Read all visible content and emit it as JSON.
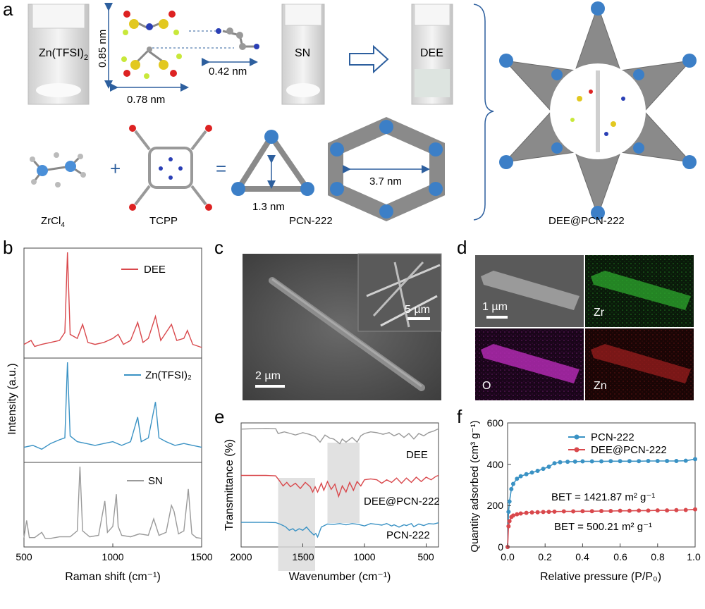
{
  "panels": {
    "a": {
      "letter": "a",
      "vial1": "Zn(TFSI)",
      "vial1_sub": "2",
      "dim_h": "0.85 nm",
      "dim_w": "0.78 nm",
      "dim_sn": "0.42 nm",
      "vial2": "SN",
      "vial3": "DEE",
      "zrcl": "ZrCl",
      "zrcl_sub": "4",
      "tcpp": "TCPP",
      "pcn": "PCN-222",
      "pore_small": "1.3 nm",
      "pore_large": "3.7 nm",
      "composite": "DEE@PCN-222",
      "plus": "+",
      "equals": "="
    },
    "b": {
      "letter": "b"
    },
    "c": {
      "letter": "c",
      "scale_inset": "5 µm",
      "scale_main": "2 µm"
    },
    "d": {
      "letter": "d",
      "scale": "1 µm",
      "el_zr": "Zr",
      "el_o": "O",
      "el_zn": "Zn"
    },
    "e": {
      "letter": "e"
    },
    "f": {
      "letter": "f",
      "bet1": "BET = 1421.87 m² g⁻¹",
      "bet2": "BET = 500.21 m² g⁻¹"
    }
  },
  "colors": {
    "red": "#d9484c",
    "blue": "#3a92c4",
    "gray": "#9a9a9a",
    "arrow": "#2d5f9e"
  },
  "chart_data": [
    {
      "type": "line",
      "id": "raman",
      "xlabel": "Raman shift (cm⁻¹)",
      "ylabel": "Intensity (a.u.)",
      "xlim": [
        500,
        1500
      ],
      "xticks": [
        "500",
        "1000",
        "1500"
      ],
      "series": [
        {
          "name": "DEE",
          "color": "#d9484c",
          "x": [
            500,
            540,
            560,
            600,
            650,
            700,
            730,
            745,
            760,
            800,
            830,
            860,
            900,
            950,
            1000,
            1030,
            1060,
            1100,
            1140,
            1170,
            1200,
            1240,
            1270,
            1300,
            1330,
            1360,
            1400,
            1420,
            1450,
            1500
          ],
          "y": [
            0.08,
            0.12,
            0.06,
            0.08,
            0.1,
            0.12,
            0.2,
            1.0,
            0.18,
            0.14,
            0.28,
            0.1,
            0.08,
            0.1,
            0.14,
            0.18,
            0.08,
            0.12,
            0.3,
            0.1,
            0.14,
            0.36,
            0.12,
            0.2,
            0.28,
            0.12,
            0.14,
            0.22,
            0.08,
            0.05
          ]
        },
        {
          "name": "Zn(TFSI)₂",
          "color": "#3a92c4",
          "x": [
            500,
            550,
            600,
            650,
            700,
            730,
            745,
            760,
            800,
            850,
            900,
            950,
            1000,
            1050,
            1100,
            1140,
            1160,
            1200,
            1240,
            1260,
            1300,
            1350,
            1400,
            1450,
            1500
          ],
          "y": [
            0.1,
            0.12,
            0.08,
            0.14,
            0.18,
            0.2,
            1.0,
            0.22,
            0.16,
            0.14,
            0.12,
            0.14,
            0.16,
            0.12,
            0.16,
            0.42,
            0.16,
            0.2,
            0.58,
            0.2,
            0.16,
            0.12,
            0.14,
            0.12,
            0.1
          ]
        },
        {
          "name": "SN",
          "color": "#9a9a9a",
          "x": [
            500,
            515,
            530,
            560,
            600,
            620,
            650,
            700,
            760,
            800,
            815,
            830,
            870,
            920,
            955,
            970,
            1000,
            1020,
            1030,
            1050,
            1100,
            1150,
            1200,
            1230,
            1260,
            1300,
            1330,
            1345,
            1370,
            1400,
            1425,
            1445,
            1470,
            1500
          ],
          "y": [
            0.05,
            0.28,
            0.05,
            0.05,
            0.12,
            0.04,
            0.04,
            0.06,
            0.06,
            0.14,
            1.0,
            0.14,
            0.06,
            0.08,
            0.54,
            0.12,
            0.2,
            0.63,
            0.2,
            0.08,
            0.06,
            0.1,
            0.08,
            0.3,
            0.08,
            0.12,
            0.48,
            0.4,
            0.1,
            0.14,
            0.7,
            0.1,
            0.05,
            0.04
          ]
        }
      ]
    },
    {
      "type": "line",
      "id": "ftir",
      "xlabel": "Wavenumber (cm⁻¹)",
      "ylabel": "Transmittance (%)",
      "xlim": [
        2000,
        400
      ],
      "xticks": [
        "2000",
        "1500",
        "1000",
        "500"
      ],
      "highlight_ranges": [
        [
          1700,
          1400
        ],
        [
          1300,
          1040
        ]
      ],
      "series": [
        {
          "name": "DEE",
          "color": "#9a9a9a",
          "x": [
            2000,
            1900,
            1800,
            1720,
            1700,
            1650,
            1600,
            1560,
            1500,
            1450,
            1400,
            1360,
            1320,
            1280,
            1250,
            1200,
            1180,
            1150,
            1100,
            1060,
            1030,
            1000,
            950,
            900,
            850,
            800,
            760,
            720,
            680,
            640,
            600,
            560,
            520,
            480,
            440,
            400
          ],
          "y": [
            0.95,
            0.96,
            0.97,
            0.96,
            0.84,
            0.88,
            0.84,
            0.8,
            0.86,
            0.82,
            0.76,
            0.62,
            0.8,
            0.72,
            0.7,
            0.58,
            0.7,
            0.62,
            0.74,
            0.62,
            0.78,
            0.84,
            0.88,
            0.86,
            0.82,
            0.86,
            0.78,
            0.84,
            0.74,
            0.84,
            0.7,
            0.84,
            0.78,
            0.86,
            0.9,
            0.96
          ]
        },
        {
          "name": "DEE@PCN-222",
          "color": "#d9484c",
          "x": [
            2000,
            1900,
            1800,
            1720,
            1690,
            1660,
            1630,
            1600,
            1560,
            1520,
            1480,
            1440,
            1420,
            1400,
            1380,
            1350,
            1330,
            1300,
            1270,
            1240,
            1210,
            1180,
            1150,
            1120,
            1090,
            1060,
            1030,
            1000,
            950,
            900,
            860,
            820,
            780,
            740,
            700,
            660,
            620,
            580,
            540,
            500,
            460,
            420,
            400
          ],
          "y": [
            0.96,
            0.96,
            0.96,
            0.95,
            0.84,
            0.72,
            0.8,
            0.7,
            0.78,
            0.66,
            0.8,
            0.7,
            0.58,
            0.7,
            0.58,
            0.78,
            0.62,
            0.82,
            0.64,
            0.76,
            0.48,
            0.72,
            0.58,
            0.8,
            0.62,
            0.82,
            0.72,
            0.86,
            0.88,
            0.86,
            0.78,
            0.86,
            0.8,
            0.9,
            0.78,
            0.9,
            0.8,
            0.92,
            0.82,
            0.92,
            0.86,
            0.94,
            0.96
          ]
        },
        {
          "name": "PCN-222",
          "color": "#3a92c4",
          "x": [
            2000,
            1900,
            1800,
            1720,
            1680,
            1640,
            1610,
            1580,
            1560,
            1530,
            1500,
            1470,
            1440,
            1410,
            1395,
            1380,
            1350,
            1300,
            1250,
            1200,
            1150,
            1100,
            1050,
            1000,
            950,
            900,
            860,
            820,
            780,
            760,
            720,
            680,
            660,
            620,
            600,
            560,
            520,
            480,
            440,
            400
          ],
          "y": [
            0.96,
            0.96,
            0.96,
            0.95,
            0.86,
            0.74,
            0.56,
            0.64,
            0.52,
            0.64,
            0.56,
            0.72,
            0.5,
            0.32,
            0.4,
            0.22,
            0.72,
            0.88,
            0.86,
            0.9,
            0.84,
            0.9,
            0.86,
            0.78,
            0.9,
            0.86,
            0.82,
            0.9,
            0.78,
            0.84,
            0.72,
            0.84,
            0.8,
            0.9,
            0.74,
            0.88,
            0.8,
            0.9,
            0.88,
            0.94
          ]
        }
      ]
    },
    {
      "type": "line",
      "id": "bet",
      "xlabel": "Relative pressure (P/P₀)",
      "ylabel": "Quantity adsorbed (cm³ g⁻¹)",
      "xlim": [
        0,
        1.0
      ],
      "ylim": [
        0,
        600
      ],
      "xticks": [
        "0.0",
        "0.2",
        "0.4",
        "0.6",
        "0.8",
        "1.0"
      ],
      "yticks": [
        "0",
        "200",
        "400",
        "600"
      ],
      "series": [
        {
          "name": "PCN-222",
          "color": "#3a92c4",
          "x": [
            0,
            0.005,
            0.01,
            0.02,
            0.03,
            0.05,
            0.07,
            0.1,
            0.13,
            0.16,
            0.19,
            0.22,
            0.25,
            0.28,
            0.32,
            0.36,
            0.4,
            0.45,
            0.5,
            0.55,
            0.6,
            0.65,
            0.7,
            0.75,
            0.8,
            0.85,
            0.9,
            0.95,
            1.0
          ],
          "y": [
            0,
            170,
            220,
            280,
            305,
            330,
            342,
            352,
            360,
            368,
            378,
            388,
            405,
            410,
            412,
            413,
            414,
            414,
            414,
            415,
            415,
            415,
            415,
            416,
            416,
            416,
            416,
            417,
            425
          ]
        },
        {
          "name": "DEE@PCN-222",
          "color": "#d9484c",
          "x": [
            0,
            0.005,
            0.01,
            0.02,
            0.03,
            0.05,
            0.07,
            0.1,
            0.13,
            0.16,
            0.19,
            0.22,
            0.25,
            0.3,
            0.35,
            0.4,
            0.45,
            0.5,
            0.55,
            0.6,
            0.65,
            0.7,
            0.75,
            0.8,
            0.85,
            0.9,
            0.95,
            1.0
          ],
          "y": [
            0,
            100,
            125,
            145,
            152,
            158,
            162,
            165,
            167,
            168,
            169,
            170,
            171,
            172,
            172,
            173,
            173,
            174,
            174,
            175,
            175,
            176,
            176,
            177,
            177,
            178,
            179,
            182
          ]
        }
      ]
    }
  ]
}
